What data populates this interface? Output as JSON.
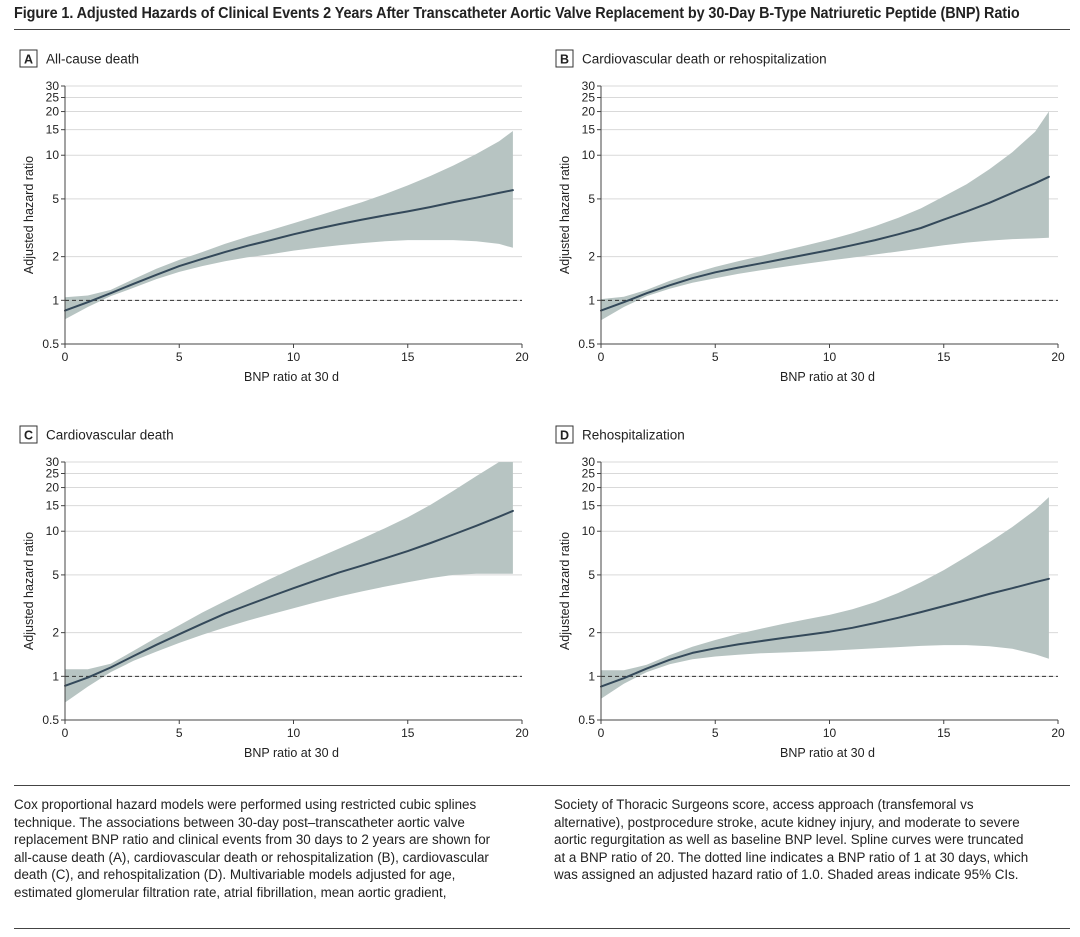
{
  "figure": {
    "title": "Figure 1. Adjusted Hazards of Clinical Events 2 Years After Transcatheter Aortic Valve Replacement by 30-Day B-Type Natriuretic Peptide (BNP) Ratio"
  },
  "caption": {
    "left_lines": [
      "Cox proportional hazard models were performed using restricted cubic splines",
      "technique. The associations between 30-day post–transcatheter aortic valve",
      "replacement BNP ratio and clinical events from 30 days to 2 years are shown for",
      "all-cause death (A), cardiovascular death or rehospitalization (B), cardiovascular",
      "death (C), and rehospitalization (D). Multivariable models adjusted for age,",
      "estimated glomerular filtration rate, atrial fibrillation, mean aortic gradient,"
    ],
    "right_lines": [
      "Society of Thoracic Surgeons score, access approach (transfemoral vs",
      "alternative), postprocedure stroke, acute kidney injury, and moderate to severe",
      "aortic regurgitation as well as baseline BNP level. Spline curves were truncated",
      "at a BNP ratio of 20. The dotted line indicates a BNP ratio of 1 at 30 days, which",
      "was assigned an adjusted hazard ratio of 1.0. Shaded areas indicate 95% CIs."
    ]
  },
  "colors": {
    "curve": "#34495a",
    "ci_band": "#b7c4c2",
    "grid": "#d9d9d9",
    "axis": "#444444",
    "reference_line": "#333333"
  },
  "chart_data": [
    {
      "panel_letter": "A",
      "title": "All-cause death",
      "type": "line",
      "xlabel": "BNP ratio at 30 d",
      "ylabel": "Adjusted hazard ratio",
      "xlim": [
        0,
        20
      ],
      "ylim": [
        0.5,
        30
      ],
      "yscale": "log",
      "xticks": [
        0,
        5,
        10,
        15,
        20
      ],
      "yticks": [
        0.5,
        1,
        2,
        5,
        10,
        15,
        20,
        25,
        30
      ],
      "grid": true,
      "reference_line_y": 1,
      "series": [
        {
          "x": [
            0,
            1,
            2,
            3,
            4,
            5,
            6,
            7,
            8,
            9,
            10,
            11,
            12,
            13,
            14,
            15,
            16,
            17,
            18,
            19,
            19.6
          ],
          "y": [
            0.85,
            0.97,
            1.12,
            1.3,
            1.5,
            1.72,
            1.93,
            2.15,
            2.38,
            2.6,
            2.85,
            3.1,
            3.35,
            3.6,
            3.85,
            4.1,
            4.4,
            4.75,
            5.1,
            5.5,
            5.75
          ],
          "lower": [
            0.74,
            0.9,
            1.07,
            1.22,
            1.4,
            1.57,
            1.72,
            1.86,
            1.98,
            2.08,
            2.2,
            2.3,
            2.4,
            2.48,
            2.55,
            2.6,
            2.6,
            2.6,
            2.55,
            2.45,
            2.3
          ],
          "upper": [
            1.05,
            1.08,
            1.18,
            1.4,
            1.65,
            1.9,
            2.15,
            2.45,
            2.75,
            3.05,
            3.4,
            3.8,
            4.25,
            4.75,
            5.4,
            6.2,
            7.2,
            8.5,
            10.2,
            12.5,
            14.7
          ]
        }
      ]
    },
    {
      "panel_letter": "B",
      "title": "Cardiovascular death or rehospitalization",
      "type": "line",
      "xlabel": "BNP ratio at 30 d",
      "ylabel": "Adjusted hazard ratio",
      "xlim": [
        0,
        20
      ],
      "ylim": [
        0.5,
        30
      ],
      "yscale": "log",
      "xticks": [
        0,
        5,
        10,
        15,
        20
      ],
      "yticks": [
        0.5,
        1,
        2,
        5,
        10,
        15,
        20,
        25,
        30
      ],
      "grid": true,
      "reference_line_y": 1,
      "series": [
        {
          "x": [
            0,
            1,
            2,
            3,
            4,
            5,
            6,
            7,
            8,
            9,
            10,
            11,
            12,
            13,
            14,
            15,
            16,
            17,
            18,
            19,
            19.6
          ],
          "y": [
            0.85,
            0.97,
            1.12,
            1.27,
            1.42,
            1.56,
            1.68,
            1.8,
            1.93,
            2.07,
            2.22,
            2.4,
            2.6,
            2.85,
            3.15,
            3.6,
            4.1,
            4.7,
            5.5,
            6.4,
            7.1
          ],
          "lower": [
            0.73,
            0.9,
            1.07,
            1.2,
            1.32,
            1.42,
            1.52,
            1.61,
            1.7,
            1.79,
            1.88,
            1.97,
            2.07,
            2.17,
            2.28,
            2.4,
            2.5,
            2.58,
            2.64,
            2.67,
            2.7
          ],
          "upper": [
            1.02,
            1.06,
            1.18,
            1.36,
            1.53,
            1.7,
            1.86,
            2.02,
            2.2,
            2.4,
            2.62,
            2.9,
            3.25,
            3.7,
            4.3,
            5.2,
            6.3,
            8,
            10.5,
            14.5,
            20
          ]
        }
      ]
    },
    {
      "panel_letter": "C",
      "title": "Cardiovascular death",
      "type": "line",
      "xlabel": "BNP ratio at 30 d",
      "ylabel": "Adjusted hazard ratio",
      "xlim": [
        0,
        20
      ],
      "ylim": [
        0.5,
        30
      ],
      "yscale": "log",
      "xticks": [
        0,
        5,
        10,
        15,
        20
      ],
      "yticks": [
        0.5,
        1,
        2,
        5,
        10,
        15,
        20,
        25,
        30
      ],
      "grid": true,
      "reference_line_y": 1,
      "series": [
        {
          "x": [
            0,
            1,
            2,
            3,
            4,
            5,
            6,
            7,
            8,
            9,
            10,
            11,
            12,
            13,
            14,
            15,
            16,
            17,
            18,
            19,
            19.6
          ],
          "y": [
            0.86,
            0.98,
            1.15,
            1.38,
            1.65,
            1.95,
            2.3,
            2.7,
            3.1,
            3.55,
            4.05,
            4.6,
            5.2,
            5.8,
            6.5,
            7.3,
            8.3,
            9.5,
            10.9,
            12.6,
            13.8
          ],
          "lower": [
            0.66,
            0.85,
            1.07,
            1.28,
            1.48,
            1.7,
            1.93,
            2.17,
            2.42,
            2.67,
            2.95,
            3.25,
            3.55,
            3.85,
            4.15,
            4.45,
            4.75,
            5,
            5.1,
            5.1,
            5.1
          ],
          "upper": [
            1.12,
            1.12,
            1.22,
            1.5,
            1.85,
            2.25,
            2.75,
            3.3,
            3.95,
            4.7,
            5.55,
            6.5,
            7.6,
            8.9,
            10.5,
            12.5,
            15.2,
            19,
            24,
            30,
            30
          ]
        }
      ]
    },
    {
      "panel_letter": "D",
      "title": "Rehospitalization",
      "type": "line",
      "xlabel": "BNP ratio at 30 d",
      "ylabel": "Adjusted hazard ratio",
      "xlim": [
        0,
        20
      ],
      "ylim": [
        0.5,
        30
      ],
      "yscale": "log",
      "xticks": [
        0,
        5,
        10,
        15,
        20
      ],
      "yticks": [
        0.5,
        1,
        2,
        5,
        10,
        15,
        20,
        25,
        30
      ],
      "grid": true,
      "reference_line_y": 1,
      "series": [
        {
          "x": [
            0,
            1,
            2,
            3,
            4,
            5,
            6,
            7,
            8,
            9,
            10,
            11,
            12,
            13,
            14,
            15,
            16,
            17,
            18,
            19,
            19.6
          ],
          "y": [
            0.85,
            0.97,
            1.13,
            1.3,
            1.45,
            1.56,
            1.66,
            1.75,
            1.84,
            1.93,
            2.03,
            2.16,
            2.33,
            2.53,
            2.77,
            3.05,
            3.35,
            3.7,
            4.05,
            4.45,
            4.7
          ],
          "lower": [
            0.7,
            0.89,
            1.07,
            1.21,
            1.31,
            1.37,
            1.41,
            1.44,
            1.46,
            1.48,
            1.5,
            1.53,
            1.56,
            1.59,
            1.62,
            1.64,
            1.64,
            1.61,
            1.55,
            1.42,
            1.32
          ],
          "upper": [
            1.1,
            1.1,
            1.2,
            1.4,
            1.6,
            1.78,
            1.96,
            2.13,
            2.3,
            2.47,
            2.65,
            2.9,
            3.25,
            3.75,
            4.45,
            5.4,
            6.7,
            8.4,
            10.7,
            14,
            17.2
          ]
        }
      ]
    }
  ]
}
